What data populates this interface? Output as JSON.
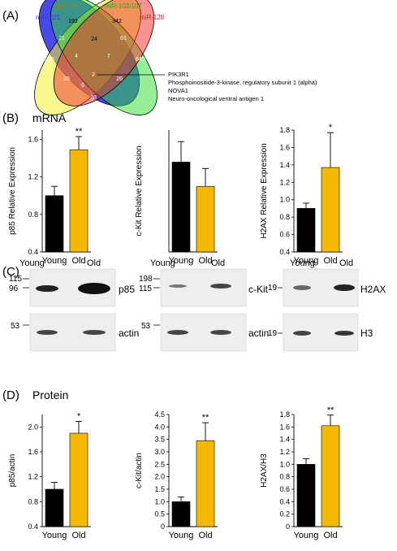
{
  "panels": {
    "A": "(A)",
    "B": "(B)",
    "C": "(C)",
    "D": "(D)"
  },
  "venn": {
    "sets": [
      {
        "name": "miR-221",
        "color": "#3a3ae6"
      },
      {
        "name": "miR-155",
        "color": "#8a8a1a"
      },
      {
        "name": "miR-103/107",
        "color": "#1faa1f"
      },
      {
        "name": "miR-128",
        "color": "#e02020"
      }
    ],
    "region_counts": [
      "206",
      "21",
      "192",
      "24",
      "342",
      "61",
      "640",
      "4",
      "7",
      "25",
      "2",
      "26",
      "6",
      "38"
    ],
    "annotation_lines": [
      "PIK3R1",
      "Phosphoinositide-3-kinase, regulatory subunit 1 (alpha)",
      "NOVA1",
      "Neuro-oncological ventral antigen 1"
    ]
  },
  "section_titles": {
    "mrna": "mRNA",
    "protein": "Protein"
  },
  "chart_data": [
    {
      "type": "bar",
      "title": "",
      "xlabel": "",
      "ylabel": "p85 Relative Expression",
      "categories": [
        "Young",
        "Old"
      ],
      "values": [
        1.0,
        1.49
      ],
      "errors": [
        0.1,
        0.14
      ],
      "colors": [
        "#000000",
        "#f5b800"
      ],
      "ylim": [
        0.4,
        1.7
      ],
      "yticks": [
        "0.4",
        "0.8",
        "1.2",
        "1.6"
      ],
      "significance": [
        "",
        "**"
      ]
    },
    {
      "type": "bar",
      "title": "",
      "xlabel": "",
      "ylabel": "c-Kit Relative Expression",
      "categories": [
        "Young",
        "Old"
      ],
      "values": [
        1.0,
        0.81
      ],
      "errors": [
        0.16,
        0.14
      ],
      "colors": [
        "#000000",
        "#f5b800"
      ],
      "ylim": [
        0.3,
        1.25
      ],
      "yticks": [],
      "significance": [
        "",
        ""
      ]
    },
    {
      "type": "bar",
      "title": "",
      "xlabel": "",
      "ylabel": "H2AX Relative Expression",
      "categories": [
        "Young",
        "Old"
      ],
      "values": [
        0.9,
        1.37
      ],
      "errors": [
        0.06,
        0.4
      ],
      "colors": [
        "#000000",
        "#f5b800"
      ],
      "ylim": [
        0.4,
        1.8
      ],
      "yticks": [
        "0.4",
        "0.6",
        "0.8",
        "1.0",
        "1.2",
        "1.4",
        "1.6",
        "1.8"
      ],
      "significance": [
        "",
        "*"
      ]
    },
    {
      "type": "bar",
      "title": "",
      "xlabel": "",
      "ylabel": "p85/actin",
      "categories": [
        "Young",
        "Old"
      ],
      "values": [
        1.0,
        1.9
      ],
      "errors": [
        0.11,
        0.19
      ],
      "colors": [
        "#000000",
        "#f5b800"
      ],
      "ylim": [
        0.4,
        2.2
      ],
      "yticks": [
        "0.4",
        "0.8",
        "1.2",
        "1.6",
        "2.0"
      ],
      "significance": [
        "",
        "*"
      ]
    },
    {
      "type": "bar",
      "title": "",
      "xlabel": "",
      "ylabel": "c-Kit/actin",
      "categories": [
        "Young",
        "Old"
      ],
      "values": [
        1.0,
        3.45
      ],
      "errors": [
        0.19,
        0.72
      ],
      "colors": [
        "#000000",
        "#f5b800"
      ],
      "ylim": [
        0,
        4.5
      ],
      "yticks": [
        "0",
        "0.5",
        "1.0",
        "1.5",
        "2.0",
        "2.5",
        "3.0",
        "3.5",
        "4.0",
        "4.5"
      ],
      "significance": [
        "",
        "**"
      ]
    },
    {
      "type": "bar",
      "title": "",
      "xlabel": "",
      "ylabel": "H2AX/H3",
      "categories": [
        "Young",
        "Old"
      ],
      "values": [
        1.0,
        1.62
      ],
      "errors": [
        0.09,
        0.17
      ],
      "colors": [
        "#000000",
        "#f5b800"
      ],
      "ylim": [
        0,
        1.8
      ],
      "yticks": [
        "0",
        "0.2",
        "0.4",
        "0.6",
        "0.8",
        "1.0",
        "1.2",
        "1.4",
        "1.6",
        "1.8"
      ],
      "significance": [
        "",
        "**"
      ]
    }
  ],
  "blots": {
    "lane_labels": [
      "Young",
      "Old"
    ],
    "p85": {
      "marker_top": [
        "115",
        "96"
      ],
      "marker_bottom": "53",
      "protein": "p85",
      "loading": "actin"
    },
    "ckit": {
      "marker_top": [
        "198",
        "115"
      ],
      "marker_bottom": "53",
      "protein": "c-Kit",
      "loading": "actin"
    },
    "h2ax": {
      "marker_top": [
        "19"
      ],
      "marker_bottom": "19",
      "protein": "H2AX",
      "loading": "H3"
    }
  }
}
